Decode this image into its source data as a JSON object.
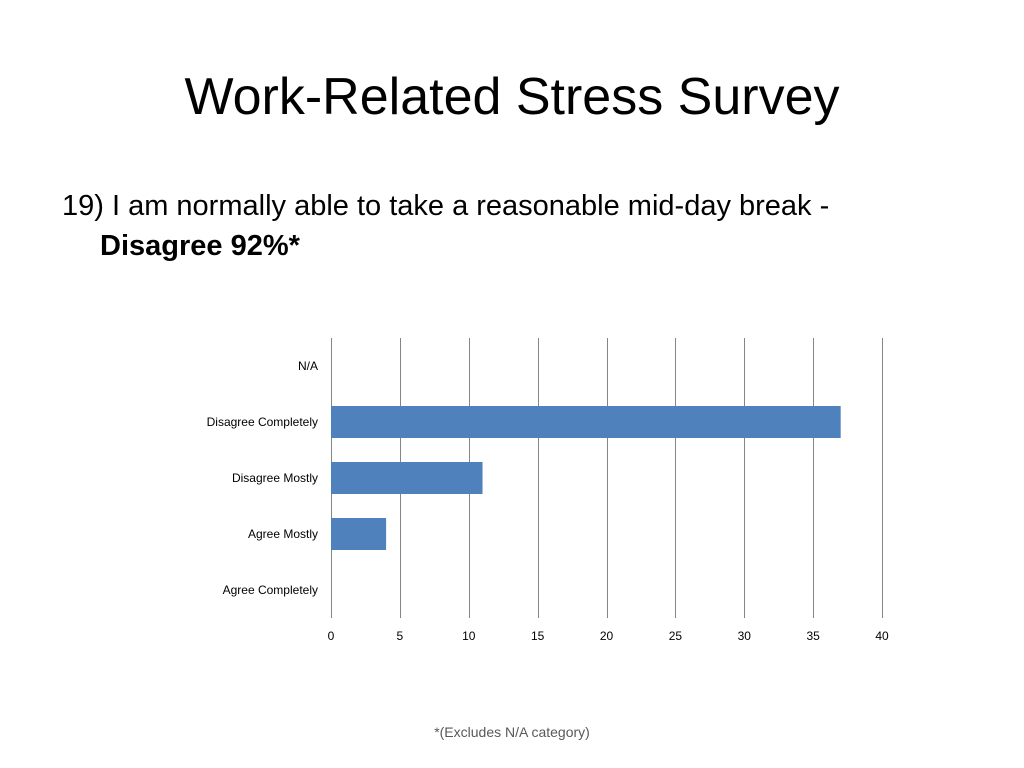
{
  "slide": {
    "title": "Work-Related Stress Survey",
    "question": "19) I am normally able to take a reasonable mid-day break -",
    "highlight": "Disagree 92%*",
    "footnote": "*(Excludes N/A category)"
  },
  "chart_data": {
    "type": "bar",
    "orientation": "horizontal",
    "categories": [
      "N/A",
      "Disagree Completely",
      "Disagree Mostly",
      "Agree Mostly",
      "Agree Completely"
    ],
    "values": [
      0,
      37,
      11,
      4,
      0
    ],
    "xlim": [
      0,
      40
    ],
    "xticks": [
      0,
      5,
      10,
      15,
      20,
      25,
      30,
      35,
      40
    ],
    "title": "",
    "xlabel": "",
    "ylabel": "",
    "grid": "vertical",
    "legend": "none",
    "bar_color": "#4F81BD",
    "grid_color": "#868686"
  }
}
